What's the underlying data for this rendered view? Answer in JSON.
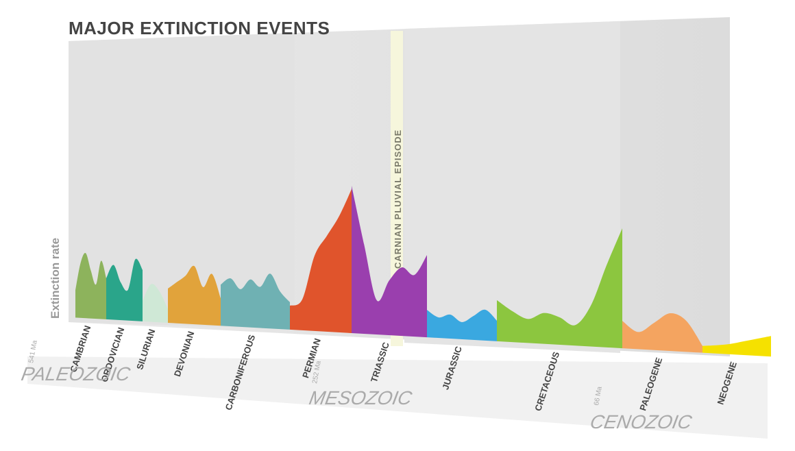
{
  "title": "MAJOR EXTINCTION EVENTS",
  "y_label": "Extinction rate",
  "annotation": "CARNIAN PLUVIAL EPISODE",
  "periods": [
    {
      "name": "CAMBRIAN",
      "color": "#8db35c"
    },
    {
      "name": "ORDOVICIAN",
      "color": "#2aa58a"
    },
    {
      "name": "SILURIAN",
      "color": "#cfe8d6"
    },
    {
      "name": "DEVONIAN",
      "color": "#e1a33b"
    },
    {
      "name": "CARBONIFEROUS",
      "color": "#6fb1b3"
    },
    {
      "name": "PERMIAN",
      "color": "#e0542c"
    },
    {
      "name": "TRIASSIC",
      "color": "#9a3fae"
    },
    {
      "name": "JURASSIC",
      "color": "#3aa8e0"
    },
    {
      "name": "CRETACEOUS",
      "color": "#8cc63f"
    },
    {
      "name": "PALEOGENE",
      "color": "#f4a460"
    },
    {
      "name": "NEOGENE",
      "color": "#f5e100"
    }
  ],
  "eras": [
    "PALEOZOIC",
    "MESOZOIC",
    "CENOZOIC"
  ],
  "dates": [
    "541 Ma",
    "252 Ma",
    "66 Ma"
  ]
}
